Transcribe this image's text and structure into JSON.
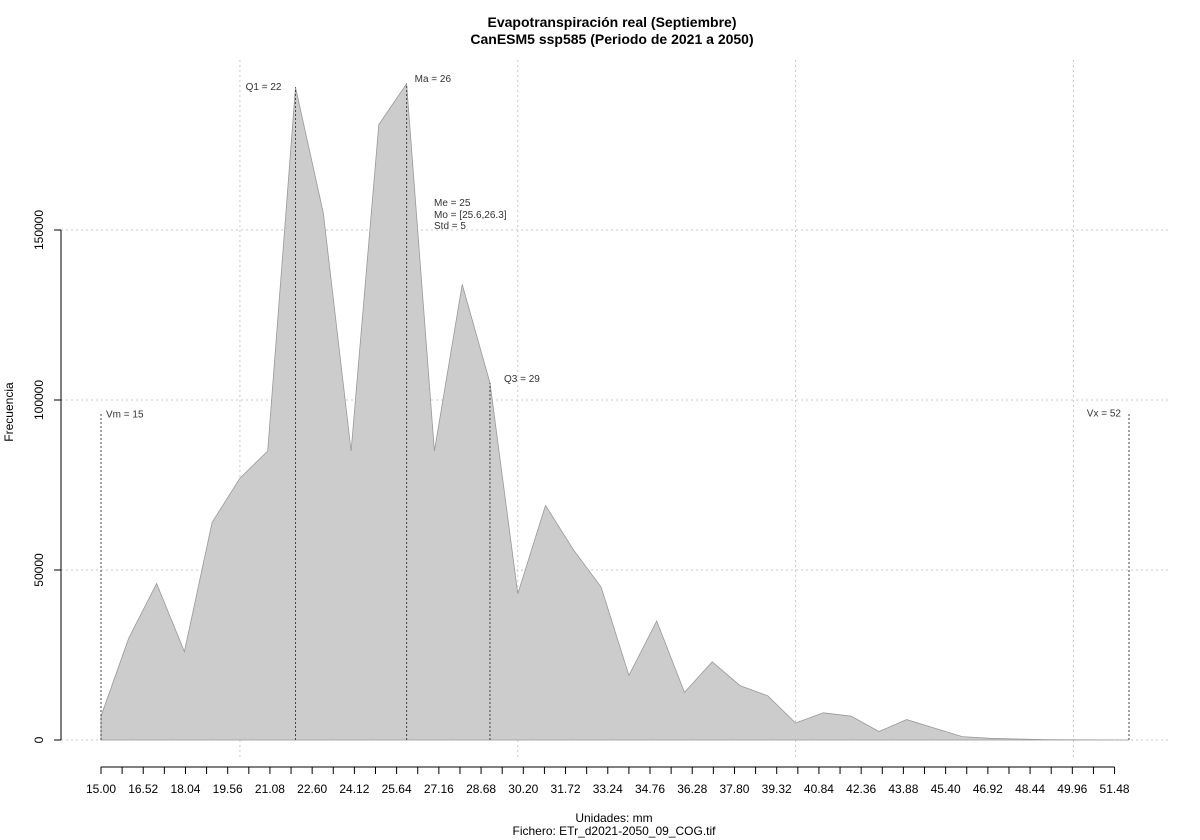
{
  "chart_data": {
    "type": "area",
    "title": "Evapotranspiración real (Septiembre)",
    "subtitle": "CanESM5 ssp585 (Periodo de 2021 a 2050)",
    "xlabel": "Unidades: mm",
    "file_label": "Fichero: ETr_d2021-2050_09_COG.tif",
    "ylabel": "Frecuencia",
    "xlim": [
      15.0,
      52.0
    ],
    "ylim": [
      0,
      195000
    ],
    "y_ticks": [
      0,
      50000,
      100000,
      150000
    ],
    "y_tick_labels": [
      "0",
      "50000",
      "100000",
      "150000"
    ],
    "x_tick_values": [
      15.0,
      15.76,
      16.52,
      17.28,
      18.04,
      18.8,
      19.56,
      20.32,
      21.08,
      21.84,
      22.6,
      23.36,
      24.12,
      24.88,
      25.64,
      26.4,
      27.16,
      27.92,
      28.68,
      29.44,
      30.2,
      30.96,
      31.72,
      32.48,
      33.24,
      34.0,
      34.76,
      35.52,
      36.28,
      37.04,
      37.8,
      38.56,
      39.32,
      40.08,
      40.84,
      41.6,
      42.36,
      43.12,
      43.88,
      44.64,
      45.4,
      46.16,
      46.92,
      47.68,
      48.44,
      49.2,
      49.96,
      50.72,
      51.48
    ],
    "x_tick_labels": [
      "15.00",
      "16.52",
      "18.04",
      "19.56",
      "21.08",
      "22.60",
      "24.12",
      "25.64",
      "27.16",
      "28.68",
      "30.20",
      "31.72",
      "33.24",
      "34.76",
      "36.28",
      "37.80",
      "39.32",
      "40.84",
      "42.36",
      "43.88",
      "45.40",
      "46.92",
      "48.44",
      "49.96",
      "51.48"
    ],
    "x_grid": [
      20.0,
      30.0,
      40.0,
      50.0
    ],
    "grid": true,
    "fill_color": "#cccccc",
    "line_color": "#999999",
    "series": [
      {
        "x": [
          15,
          16,
          17,
          18,
          19,
          20,
          21,
          22,
          23,
          24,
          25,
          26,
          27,
          28,
          29,
          30,
          31,
          32,
          33,
          34,
          35,
          36,
          37,
          38,
          39,
          40,
          41,
          42,
          43,
          44,
          45,
          46,
          47,
          48,
          49,
          50,
          51,
          52
        ],
        "values": [
          7000,
          30000,
          46000,
          26000,
          64000,
          77000,
          85000,
          192000,
          155000,
          85000,
          181000,
          193000,
          85000,
          134000,
          105000,
          43000,
          69000,
          56000,
          45000,
          19000,
          35000,
          14000,
          23000,
          16000,
          13000,
          5000,
          8000,
          7000,
          2500,
          6000,
          3500,
          1000,
          500,
          300,
          100,
          50,
          20,
          0
        ]
      }
    ],
    "vlines": [
      {
        "x": 15,
        "top": 96000,
        "label": "Vm = 15"
      },
      {
        "x": 22,
        "top": 192000,
        "label": "Q1 = 22"
      },
      {
        "x": 26,
        "top": 193000,
        "label": "Ma = 26"
      },
      {
        "x": 29,
        "top": 105000,
        "label": "Q3 = 29"
      },
      {
        "x": 52,
        "top": 96000,
        "label": "Vx = 52"
      }
    ],
    "stats": {
      "mean": "Me = 25",
      "mode": "Mo = [25.6,26.3]",
      "std": "Std = 5"
    }
  }
}
